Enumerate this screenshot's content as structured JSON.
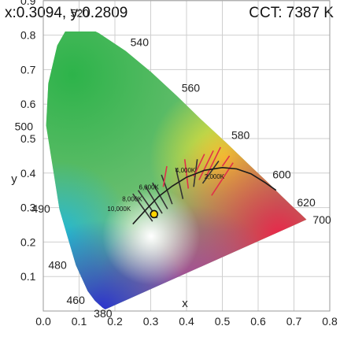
{
  "readout": {
    "coords": "x:0.3094, y:0.2809",
    "cct": "CCT: 7387 K"
  },
  "chart_data": {
    "type": "scatter",
    "title": "",
    "xlabel": "x",
    "ylabel": "y",
    "xlim": [
      0.0,
      0.8
    ],
    "ylim": [
      0.0,
      0.9
    ],
    "grid": true,
    "x_ticks": [
      "0.0",
      "0.1",
      "0.2",
      "0.3",
      "0.4",
      "0.5",
      "0.6",
      "0.7",
      "0.8"
    ],
    "y_ticks": [
      "0.1",
      "0.2",
      "0.3",
      "0.4",
      "0.5",
      "0.6",
      "0.7",
      "0.8",
      "0.9"
    ],
    "spectral_locus": [
      {
        "label": "380",
        "x": 0.174,
        "y": 0.005
      },
      {
        "label": "460",
        "x": 0.144,
        "y": 0.03
      },
      {
        "label": "480",
        "x": 0.091,
        "y": 0.133
      },
      {
        "label": "490",
        "x": 0.045,
        "y": 0.295
      },
      {
        "label": "500",
        "x": 0.008,
        "y": 0.538
      },
      {
        "label": "520",
        "x": 0.074,
        "y": 0.834
      },
      {
        "label": "540",
        "x": 0.23,
        "y": 0.754
      },
      {
        "label": "560",
        "x": 0.373,
        "y": 0.624
      },
      {
        "label": "580",
        "x": 0.512,
        "y": 0.487
      },
      {
        "label": "600",
        "x": 0.627,
        "y": 0.373
      },
      {
        "label": "620",
        "x": 0.691,
        "y": 0.308
      },
      {
        "label": "700",
        "x": 0.735,
        "y": 0.265
      }
    ],
    "planckian_locus": [
      {
        "label": "10,000K",
        "x": 0.28,
        "y": 0.288
      },
      {
        "label": "8,000K",
        "x": 0.295,
        "y": 0.305
      },
      {
        "label": "6,000K",
        "x": 0.322,
        "y": 0.332
      },
      {
        "label": "4,000K",
        "x": 0.38,
        "y": 0.377
      },
      {
        "label": "2,000K",
        "x": 0.527,
        "y": 0.413
      }
    ],
    "measured_point": {
      "x": 0.3094,
      "y": 0.2809,
      "color": "#ffd400"
    }
  }
}
